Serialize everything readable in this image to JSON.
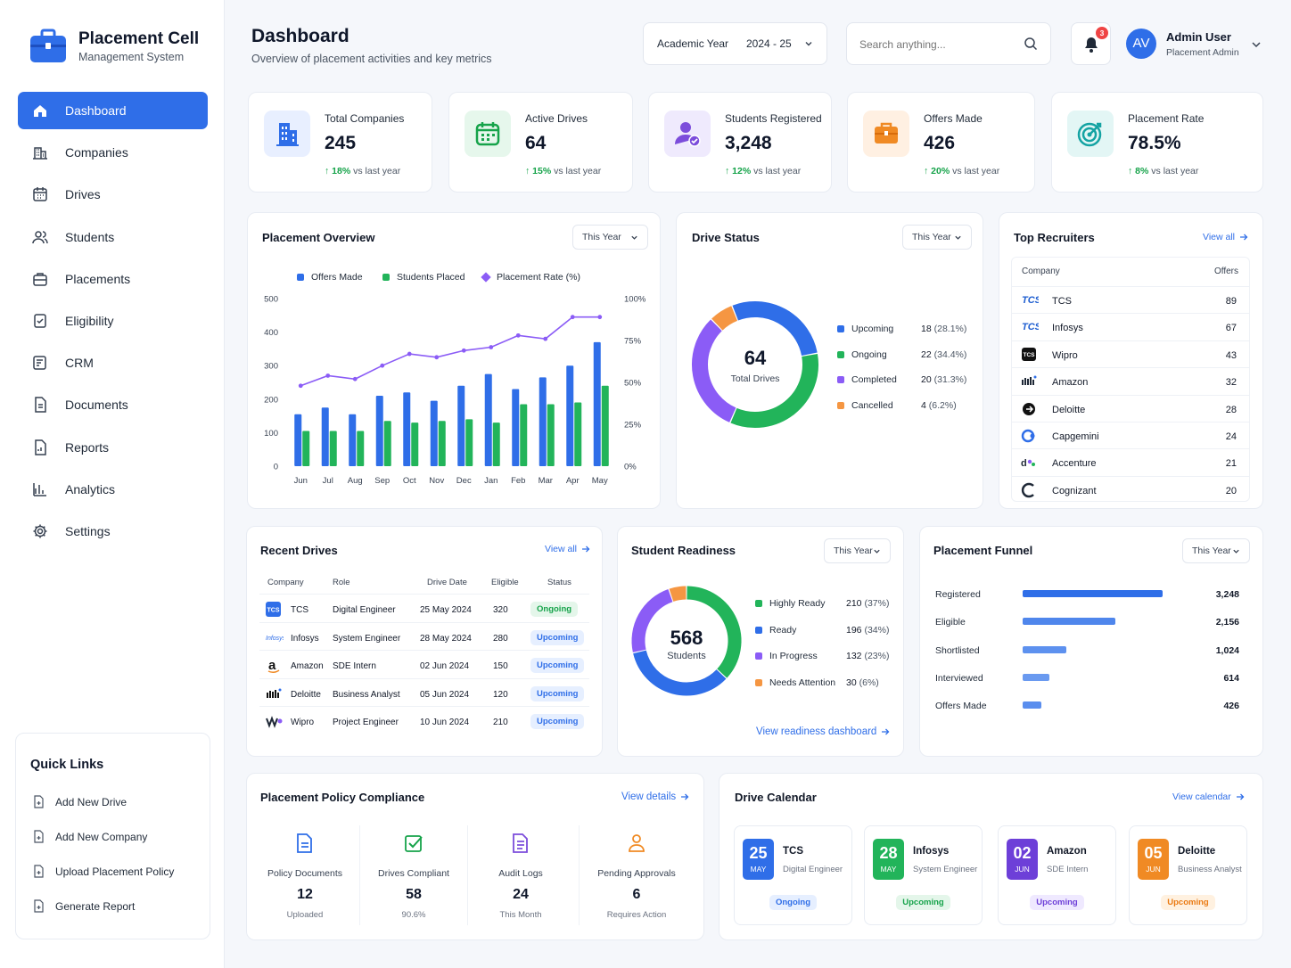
{
  "brand": {
    "title": "Placement Cell",
    "subtitle": "Management System"
  },
  "nav": [
    {
      "label": "Dashboard",
      "icon": "home-icon",
      "active": true
    },
    {
      "label": "Companies",
      "icon": "building-icon"
    },
    {
      "label": "Drives",
      "icon": "calendar-icon"
    },
    {
      "label": "Students",
      "icon": "users-icon"
    },
    {
      "label": "Placements",
      "icon": "briefcase-icon"
    },
    {
      "label": "Eligibility",
      "icon": "checklist-icon"
    },
    {
      "label": "CRM",
      "icon": "contact-card-icon"
    },
    {
      "label": "Documents",
      "icon": "document-icon"
    },
    {
      "label": "Reports",
      "icon": "report-icon"
    },
    {
      "label": "Analytics",
      "icon": "bar-chart-icon"
    },
    {
      "label": "Settings",
      "icon": "gear-icon"
    }
  ],
  "quick_links": {
    "title": "Quick Links",
    "items": [
      "Add New Drive",
      "Add New Company",
      "Upload Placement Policy",
      "Generate Report"
    ]
  },
  "header": {
    "title": "Dashboard",
    "subtitle": "Overview of placement activities and key metrics",
    "year_label": "Academic Year",
    "year_value": "2024 - 25",
    "search_placeholder": "Search anything...",
    "notification_count": "3",
    "avatar_initials": "AV",
    "user_name": "Admin User",
    "user_role": "Placement Admin"
  },
  "stats": [
    {
      "label": "Total Companies",
      "value": "245",
      "change": "18%",
      "suffix": "vs last year",
      "icon": "building-icon",
      "color": "#2f6ee8"
    },
    {
      "label": "Active Drives",
      "value": "64",
      "change": "15%",
      "suffix": "vs last year",
      "icon": "calendar-icon",
      "color": "#16a34a"
    },
    {
      "label": "Students Registered",
      "value": "3,248",
      "change": "12%",
      "suffix": "vs last year",
      "icon": "user-check-icon",
      "color": "#7c4ddb"
    },
    {
      "label": "Offers Made",
      "value": "426",
      "change": "20%",
      "suffix": "vs last year",
      "icon": "briefcase-icon",
      "color": "#f08a24"
    },
    {
      "label": "Placement Rate",
      "value": "78.5%",
      "change": "8%",
      "suffix": "vs last year",
      "icon": "target-icon",
      "color": "#14a3a3"
    }
  ],
  "overview": {
    "title": "Placement Overview",
    "period": "This Year",
    "chart_data": {
      "type": "bar",
      "categories": [
        "Jun",
        "Jul",
        "Aug",
        "Sep",
        "Oct",
        "Nov",
        "Dec",
        "Jan",
        "Feb",
        "Mar",
        "Apr",
        "May"
      ],
      "series": [
        {
          "name": "Offers Made",
          "type": "bar",
          "color": "#2f6ee8",
          "values": [
            155,
            175,
            155,
            210,
            220,
            195,
            240,
            275,
            230,
            265,
            300,
            370
          ]
        },
        {
          "name": "Students Placed",
          "type": "bar",
          "color": "#22b45a",
          "values": [
            105,
            105,
            105,
            135,
            130,
            135,
            140,
            130,
            185,
            185,
            190,
            240
          ]
        },
        {
          "name": "Placement Rate (%)",
          "type": "line",
          "axis": "right",
          "color": "#8b5cf6",
          "values": [
            48,
            54,
            52,
            60,
            67,
            65,
            69,
            71,
            78,
            76,
            89,
            89
          ]
        }
      ],
      "y_left": {
        "min": 0,
        "max": 500,
        "ticks": [
          "0",
          "100",
          "200",
          "300",
          "400",
          "500"
        ]
      },
      "y_right": {
        "min": 0,
        "max": 100,
        "ticks": [
          "0%",
          "25%",
          "50%",
          "75%",
          "100%"
        ]
      },
      "legend_position": "top"
    }
  },
  "drive_status": {
    "title": "Drive Status",
    "period": "This Year",
    "center_value": "64",
    "center_label": "Total Drives",
    "chart_data": {
      "type": "pie",
      "slices": [
        {
          "label": "Upcoming",
          "value": 18,
          "pct": "(28.1%)",
          "color": "#2f6ee8"
        },
        {
          "label": "Ongoing",
          "value": 22,
          "pct": "(34.4%)",
          "color": "#22b45a"
        },
        {
          "label": "Completed",
          "value": 20,
          "pct": "(31.3%)",
          "color": "#8b5cf6"
        },
        {
          "label": "Cancelled",
          "value": 4,
          "pct": "(6.2%)",
          "color": "#f59642"
        }
      ]
    }
  },
  "recruiters": {
    "title": "Top Recruiters",
    "view_all": "View all",
    "col_company": "Company",
    "col_offers": "Offers",
    "rows": [
      {
        "name": "TCS",
        "offers": "89",
        "logo": "TCS"
      },
      {
        "name": "Infosys",
        "offers": "67",
        "logo": "TCS"
      },
      {
        "name": "Wipro",
        "offers": "43",
        "logo": "TCS"
      },
      {
        "name": "Amazon",
        "offers": "32",
        "logo": ""
      },
      {
        "name": "Deloitte",
        "offers": "28",
        "logo": ""
      },
      {
        "name": "Capgemini",
        "offers": "24",
        "logo": ""
      },
      {
        "name": "Accenture",
        "offers": "21",
        "logo": ""
      },
      {
        "name": "Cognizant",
        "offers": "20",
        "logo": "C"
      }
    ]
  },
  "recent_drives": {
    "title": "Recent Drives",
    "view_all": "View all",
    "headers": [
      "Company",
      "Role",
      "Drive Date",
      "Eligible",
      "Status"
    ],
    "rows": [
      {
        "logo": "TCS",
        "company": "TCS",
        "role": "Digital Engineer",
        "date": "25 May 2024",
        "eligible": "320",
        "status": "Ongoing"
      },
      {
        "logo": "Infosys",
        "company": "Infosys",
        "role": "System Engineer",
        "date": "28 May 2024",
        "eligible": "280",
        "status": "Upcoming"
      },
      {
        "logo": "a",
        "company": "Amazon",
        "role": "SDE Intern",
        "date": "02 Jun 2024",
        "eligible": "150",
        "status": "Upcoming"
      },
      {
        "logo": "",
        "company": "Deloitte",
        "role": "Business Analyst",
        "date": "05 Jun 2024",
        "eligible": "120",
        "status": "Upcoming"
      },
      {
        "logo": "",
        "company": "Wipro",
        "role": "Project Engineer",
        "date": "10 Jun 2024",
        "eligible": "210",
        "status": "Upcoming"
      }
    ]
  },
  "readiness": {
    "title": "Student Readiness",
    "period": "This Year",
    "center_value": "568",
    "center_label": "Students",
    "link": "View readiness dashboard",
    "chart_data": {
      "type": "pie",
      "slices": [
        {
          "label": "Highly Ready",
          "value": 210,
          "pct": "(37%)",
          "color": "#22b45a"
        },
        {
          "label": "Ready",
          "value": 196,
          "pct": "(34%)",
          "color": "#2f6ee8"
        },
        {
          "label": "In Progress",
          "value": 132,
          "pct": "(23%)",
          "color": "#8b5cf6"
        },
        {
          "label": "Needs Attention",
          "value": 30,
          "pct": "(6%)",
          "color": "#f59642"
        }
      ]
    }
  },
  "funnel": {
    "title": "Placement Funnel",
    "period": "This Year",
    "chart_data": {
      "type": "bar",
      "orientation": "horizontal",
      "categories": [
        "Registered",
        "Eligible",
        "Shortlisted",
        "Interviewed",
        "Offers Made"
      ],
      "values": [
        3248,
        2156,
        1024,
        614,
        426
      ],
      "labels": [
        "3,248",
        "2,156",
        "1,024",
        "614",
        "426"
      ]
    }
  },
  "compliance": {
    "title": "Placement Policy Compliance",
    "link": "View details",
    "items": [
      {
        "label": "Policy Documents",
        "value": "12",
        "sub": "Uploaded",
        "icon": "document-icon",
        "color": "#2f6ee8"
      },
      {
        "label": "Drives Compliant",
        "value": "58",
        "sub": "90.6%",
        "icon": "checkbox-icon",
        "color": "#16a34a"
      },
      {
        "label": "Audit Logs",
        "value": "24",
        "sub": "This Month",
        "icon": "file-list-icon",
        "color": "#7c4ddb"
      },
      {
        "label": "Pending Approvals",
        "value": "6",
        "sub": "Requires Action",
        "icon": "user-icon",
        "color": "#f08a24"
      }
    ]
  },
  "calendar": {
    "title": "Drive Calendar",
    "link": "View calendar",
    "events": [
      {
        "day": "25",
        "month": "MAY",
        "company": "TCS",
        "role": "Digital Engineer",
        "status": "Ongoing",
        "color": "#2f6ee8",
        "pill": "upcoming"
      },
      {
        "day": "28",
        "month": "MAY",
        "company": "Infosys",
        "role": "System Engineer",
        "status": "Upcoming",
        "color": "#22b45a",
        "pill": "ongoing"
      },
      {
        "day": "02",
        "month": "JUN",
        "company": "Amazon",
        "role": "SDE Intern",
        "status": "Upcoming",
        "color": "#6d3fd8",
        "pill": "purple"
      },
      {
        "day": "05",
        "month": "JUN",
        "company": "Deloitte",
        "role": "Business Analyst",
        "status": "Upcoming",
        "color": "#f08a24",
        "pill": "orange"
      }
    ]
  }
}
